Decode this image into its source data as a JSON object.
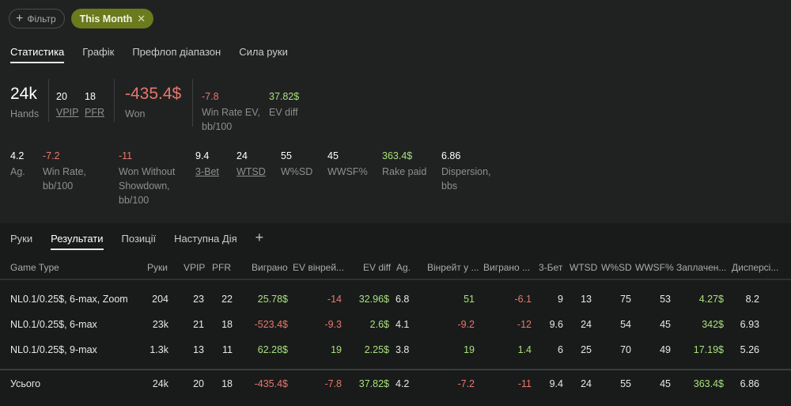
{
  "filters": {
    "add_label": "Фільтр",
    "active_label": "This Month"
  },
  "main_tabs": [
    "Статистика",
    "Графік",
    "Префлоп діапазон",
    "Сила руки"
  ],
  "stats_row1": {
    "hands": {
      "value": "24k",
      "label": "Hands"
    },
    "vpip": {
      "value": "20",
      "label": "VPIP"
    },
    "pfr": {
      "value": "18",
      "label": "PFR"
    },
    "won": {
      "value": "-435.4$",
      "label": "Won"
    },
    "winrate_ev": {
      "value": "-7.8",
      "label": "Win Rate EV,",
      "label2": "bb/100"
    },
    "ev_diff": {
      "value": "37.82$",
      "label": "EV diff"
    }
  },
  "stats_row2": {
    "ag": {
      "value": "4.2",
      "label": "Ag."
    },
    "winrate": {
      "value": "-7.2",
      "label": "Win Rate,",
      "label2": "bb/100"
    },
    "won_wo_sd": {
      "value": "-11",
      "label": "Won Without",
      "label2": "Showdown,",
      "label3": "bb/100"
    },
    "three_bet": {
      "value": "9.4",
      "label": "3-Bet"
    },
    "wtsd": {
      "value": "24",
      "label": "WTSD"
    },
    "wsd": {
      "value": "55",
      "label": "W%SD"
    },
    "wwsf": {
      "value": "45",
      "label": "WWSF%"
    },
    "rake": {
      "value": "363.4$",
      "label": "Rake paid"
    },
    "dispersion": {
      "value": "6.86",
      "label": "Dispersion,",
      "label2": "bbs"
    }
  },
  "sub_tabs": [
    "Руки",
    "Результати",
    "Позиції",
    "Наступна Дія"
  ],
  "table": {
    "headers": [
      "Game Type",
      "Руки",
      "VPIP",
      "PFR",
      "Виграно",
      "EV вінрей...",
      "EV diff",
      "Ag.",
      "Вінрейт у ...",
      "Виграно ...",
      "3-Бет",
      "WTSD",
      "W%SD",
      "WWSF%",
      "Заплачен...",
      "Дисперсі..."
    ],
    "rows": [
      [
        "NL0.1/0.25$, 6-max, Zoom",
        "204",
        "23",
        "22",
        "25.78$",
        "-14",
        "32.96$",
        "6.8",
        "51",
        "-6.1",
        "9",
        "13",
        "75",
        "53",
        "4.27$",
        "8.2"
      ],
      [
        "NL0.1/0.25$, 6-max",
        "23k",
        "21",
        "18",
        "-523.4$",
        "-9.3",
        "2.6$",
        "4.1",
        "-9.2",
        "-12",
        "9.6",
        "24",
        "54",
        "45",
        "342$",
        "6.93"
      ],
      [
        "NL0.1/0.25$, 9-max",
        "1.3k",
        "13",
        "11",
        "62.28$",
        "19",
        "2.25$",
        "3.8",
        "19",
        "1.4",
        "6",
        "25",
        "70",
        "49",
        "17.19$",
        "5.26"
      ]
    ],
    "total": [
      "Усього",
      "24k",
      "20",
      "18",
      "-435.4$",
      "-7.8",
      "37.82$",
      "4.2",
      "-7.2",
      "-11",
      "9.4",
      "24",
      "55",
      "45",
      "363.4$",
      "6.86"
    ]
  },
  "colors": {
    "positive": "#a8e07a",
    "negative": "#e8776b",
    "accent": "#6b7a1c"
  }
}
